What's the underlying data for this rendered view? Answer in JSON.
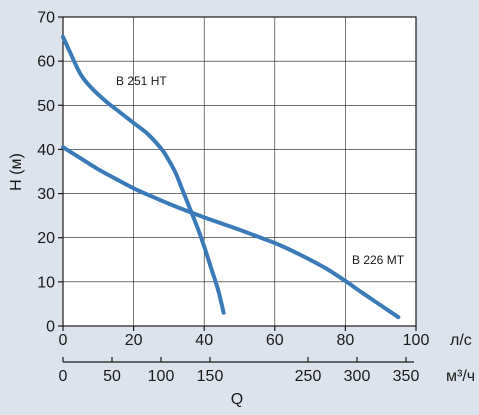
{
  "chart_data": {
    "type": "line",
    "title": "",
    "xlabel": "Q",
    "ylabel": "H (м)",
    "x_unit_primary": "л/с",
    "x_unit_secondary": "м³/ч",
    "xlim": [
      0,
      100
    ],
    "ylim": [
      0,
      70
    ],
    "x_ticks": [
      "0",
      "20",
      "40",
      "60",
      "80",
      "100"
    ],
    "x_tick_values": [
      0,
      20,
      40,
      60,
      80,
      100
    ],
    "x2_ticks": [
      "0",
      "50",
      "100",
      "150",
      "250",
      "300",
      "350"
    ],
    "x2_tick_values": [
      0,
      50,
      100,
      150,
      250,
      300,
      350
    ],
    "y_ticks": [
      "0",
      "10",
      "20",
      "30",
      "40",
      "50",
      "60",
      "70"
    ],
    "y_tick_values": [
      0,
      10,
      20,
      30,
      40,
      50,
      60,
      70
    ],
    "grid": true,
    "line_color": "#3a7ab8",
    "background": "#dde3ed",
    "series": [
      {
        "name": "B 251 HT",
        "x": [
          0,
          2,
          5,
          8,
          12,
          16,
          20,
          24,
          28,
          30,
          32,
          34,
          36,
          38,
          40,
          42,
          44,
          45.5
        ],
        "y": [
          65.5,
          62,
          57,
          54,
          51,
          48.5,
          46,
          43.5,
          40,
          37.5,
          34.5,
          30.5,
          26.5,
          22.5,
          18,
          13,
          8,
          3
        ]
      },
      {
        "name": "B 226 MT",
        "x": [
          0,
          5,
          10,
          15,
          20,
          25,
          30,
          35,
          40,
          45,
          50,
          55,
          60,
          65,
          70,
          75,
          80,
          85,
          90,
          95
        ],
        "y": [
          40.5,
          38,
          35.5,
          33.3,
          31.2,
          29.4,
          27.7,
          26.1,
          24.6,
          23.2,
          21.8,
          20.3,
          18.8,
          17,
          15,
          12.8,
          10.2,
          7.4,
          4.7,
          2
        ]
      }
    ]
  }
}
